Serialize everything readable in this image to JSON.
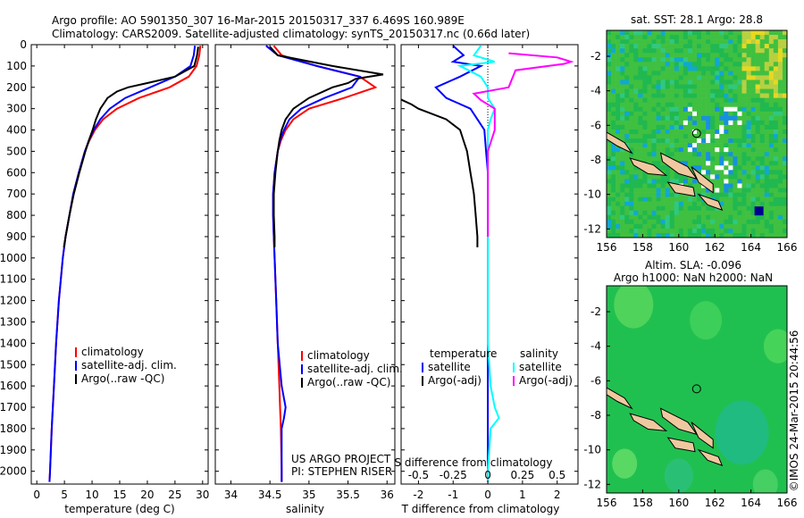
{
  "header": {
    "line1": "Argo profile: AO 5901350_307 16-Mar-2015 20150317_337 6.469S 160.989E",
    "line2": "Climatology: CARS2009. Satellite-adjusted climatology: synTS_20150317.nc (0.66d later)"
  },
  "colors": {
    "climatology": "#ff0000",
    "satellite": "#0000ff",
    "argo": "#000000",
    "salinity_satellite": "#00ffff",
    "salinity_argo": "#ff00ff",
    "land": "#f0c8a0",
    "sst_map_base": "#22c060",
    "sla_map_base": "#20c050"
  },
  "chart_data": [
    {
      "type": "line",
      "panel": "temperature",
      "xlabel": "temperature (deg C)",
      "ylabel": "",
      "xlim": [
        -1,
        31
      ],
      "ylim": [
        2060,
        0
      ],
      "xticks": [
        "0",
        "5",
        "10",
        "15",
        "20",
        "25",
        "30"
      ],
      "yticks": [
        "0",
        "100",
        "200",
        "300",
        "400",
        "500",
        "600",
        "700",
        "800",
        "900",
        "1000",
        "1100",
        "1200",
        "1300",
        "1400",
        "1500",
        "1600",
        "1700",
        "1800",
        "1900",
        "2000"
      ],
      "legend": [
        "climatology",
        "satellite-adj. clim.",
        "Argo(..raw -QC)"
      ],
      "legend_position": "lower-right",
      "series": [
        {
          "name": "climatology",
          "depth": [
            5,
            50,
            100,
            150,
            200,
            250,
            300,
            350,
            400,
            450,
            500,
            600,
            700,
            800,
            900,
            1000,
            1200,
            1400,
            1600,
            1800,
            2000,
            2050
          ],
          "values": [
            29.6,
            29.4,
            28.9,
            27.5,
            24,
            18.5,
            14.5,
            12,
            10.5,
            9.5,
            8.7,
            7.6,
            6.6,
            5.9,
            5.2,
            4.7,
            4,
            3.5,
            3.1,
            2.7,
            2.4,
            2.3
          ]
        },
        {
          "name": "satellite-adj. clim.",
          "depth": [
            5,
            50,
            100,
            150,
            200,
            250,
            300,
            350,
            400,
            450,
            500,
            600,
            700,
            800,
            900,
            1000,
            1200,
            1400,
            1600,
            1800,
            2000,
            2050
          ],
          "values": [
            28.6,
            28.4,
            27.8,
            25,
            20.5,
            16,
            13.2,
            11.5,
            10.3,
            9.4,
            8.7,
            7.6,
            6.6,
            5.9,
            5.2,
            4.7,
            4,
            3.5,
            3.1,
            2.7,
            2.4,
            2.3
          ]
        },
        {
          "name": "Argo(..raw -QC)",
          "depth": [
            10,
            50,
            100,
            150,
            180,
            200,
            220,
            250,
            300,
            350,
            400,
            450,
            500,
            600,
            700,
            800,
            900,
            950
          ],
          "values": [
            29.2,
            29,
            28.5,
            25,
            20,
            16.5,
            14.5,
            12.8,
            11.5,
            10.7,
            10.1,
            9.4,
            8.8,
            7.7,
            6.7,
            5.9,
            5.2,
            4.9
          ]
        }
      ]
    },
    {
      "type": "line",
      "panel": "salinity",
      "xlabel": "salinity",
      "ylabel": "",
      "xlim": [
        33.8,
        36.1
      ],
      "ylim": [
        2060,
        0
      ],
      "xticks": [
        "34",
        "34.5",
        "35",
        "35.5",
        "36"
      ],
      "legend": [
        "climatology",
        "satellite-adj. clim.",
        "Argo(..raw -QC)"
      ],
      "legend_position": "lower-right",
      "annotations": [
        "US ARGO PROJECT",
        "PI: STEPHEN RISER"
      ],
      "series": [
        {
          "name": "climatology",
          "depth": [
            5,
            50,
            100,
            150,
            200,
            250,
            300,
            350,
            400,
            450,
            500,
            600,
            700,
            800,
            900,
            1000,
            1200,
            1400,
            1600,
            1700,
            1800,
            2000,
            2050
          ],
          "values": [
            34.55,
            34.65,
            35.1,
            35.65,
            35.85,
            35.45,
            35.0,
            34.8,
            34.7,
            34.64,
            34.6,
            34.56,
            34.54,
            34.54,
            34.55,
            34.56,
            34.58,
            34.6,
            34.62,
            34.63,
            34.64,
            34.65,
            34.65
          ]
        },
        {
          "name": "satellite-adj. clim.",
          "depth": [
            5,
            50,
            100,
            150,
            200,
            250,
            300,
            350,
            400,
            450,
            500,
            600,
            700,
            800,
            900,
            1000,
            1200,
            1400,
            1600,
            1700,
            1750,
            1800,
            2000,
            2050
          ],
          "values": [
            34.45,
            34.6,
            35.1,
            35.65,
            35.55,
            35.2,
            34.9,
            34.75,
            34.68,
            34.63,
            34.6,
            34.56,
            34.54,
            34.54,
            34.55,
            34.56,
            34.58,
            34.6,
            34.65,
            34.7,
            34.68,
            34.65,
            34.65,
            34.65
          ]
        },
        {
          "name": "Argo(..raw -QC)",
          "depth": [
            10,
            50,
            100,
            140,
            160,
            180,
            200,
            250,
            300,
            350,
            400,
            450,
            500,
            600,
            700,
            800,
            900,
            950
          ],
          "values": [
            34.5,
            34.6,
            35.3,
            35.95,
            35.6,
            35.5,
            35.3,
            35.0,
            34.8,
            34.7,
            34.65,
            34.62,
            34.6,
            34.57,
            34.55,
            34.55,
            34.56,
            34.56
          ]
        }
      ]
    },
    {
      "type": "line",
      "panel": "difference",
      "xlabel": "T difference from climatology",
      "xlabel2": "S difference from climatology",
      "xlim": [
        -2.5,
        2.6
      ],
      "ylim": [
        2060,
        0
      ],
      "xticks": [
        "-2",
        "-1",
        "0",
        "1",
        "2"
      ],
      "xticks2": [
        "-0.5",
        "-0.25",
        "0",
        "0.25",
        "0.5"
      ],
      "legend_titles": [
        "temperature",
        "salinity"
      ],
      "legend": [
        "satellite",
        "Argo(-adj)",
        "satellite",
        "Argo(-adj)"
      ],
      "series": [
        {
          "name": "temperature satellite",
          "depth": [
            5,
            50,
            80,
            100,
            150,
            200,
            250,
            300,
            350,
            400,
            500,
            600,
            700,
            800,
            900,
            1000,
            1500,
            2000,
            2050
          ],
          "values": [
            -1,
            -0.7,
            -1.0,
            -0.2,
            -0.8,
            -1.5,
            -1.2,
            -0.5,
            -0.3,
            -0.1,
            -0.05,
            0,
            0,
            0,
            0,
            0,
            0,
            0,
            0
          ]
        },
        {
          "name": "temperature Argo(-adj)",
          "depth": [
            250,
            280,
            300,
            350,
            400,
            450,
            500,
            550,
            600,
            650,
            700,
            800,
            900,
            950
          ],
          "values": [
            -2.6,
            -2.2,
            -2.0,
            -1.2,
            -0.8,
            -0.7,
            -0.6,
            -0.55,
            -0.5,
            -0.45,
            -0.4,
            -0.35,
            -0.3,
            -0.3
          ]
        },
        {
          "name": "salinity satellite",
          "depth": [
            5,
            50,
            80,
            100,
            150,
            200,
            250,
            300,
            350,
            400,
            500,
            600,
            800,
            1000,
            1200,
            1400,
            1600,
            1700,
            1750,
            1800,
            2000,
            2050
          ],
          "values": [
            -0.05,
            -0.1,
            0.05,
            -0.2,
            -0.05,
            0.0,
            0.0,
            0.05,
            0.02,
            0.0,
            0.0,
            0.0,
            0.0,
            0.0,
            0.0,
            0.0,
            0.02,
            0.05,
            0.08,
            0.02,
            0.0,
            0.0
          ]
        },
        {
          "name": "salinity Argo(-adj)",
          "depth": [
            40,
            60,
            80,
            90,
            120,
            200,
            230,
            260,
            300,
            400,
            500,
            700,
            900
          ],
          "values": [
            0.15,
            0.5,
            0.6,
            0.55,
            0.2,
            0.15,
            -0.1,
            -0.05,
            0.05,
            0.05,
            0.0,
            0.0,
            0.0
          ]
        }
      ]
    },
    {
      "type": "heatmap",
      "panel": "sst_map",
      "title": "sat. SST: 28.1  Argo: 28.8",
      "xlim": [
        156,
        166
      ],
      "ylim": [
        -12.5,
        -0.5
      ],
      "xticks": [
        "156",
        "158",
        "160",
        "162",
        "164",
        "166"
      ],
      "yticks": [
        "-2",
        "-4",
        "-6",
        "-8",
        "-10",
        "-12"
      ],
      "marker": {
        "lon": 160.989,
        "lat": -6.469
      }
    },
    {
      "type": "heatmap",
      "panel": "sla_map",
      "title_line1": "Altim. SLA: -0.096",
      "title_line2": "Argo h1000: NaN h2000: NaN",
      "xlim": [
        156,
        166
      ],
      "ylim": [
        -12.5,
        -0.5
      ],
      "xticks": [
        "156",
        "158",
        "160",
        "162",
        "164",
        "166"
      ],
      "yticks": [
        "-2",
        "-4",
        "-6",
        "-8",
        "-10",
        "-12"
      ],
      "marker": {
        "lon": 160.989,
        "lat": -6.469
      }
    }
  ],
  "credit": "©IMOS 24-Mar-2015 20:44:56"
}
